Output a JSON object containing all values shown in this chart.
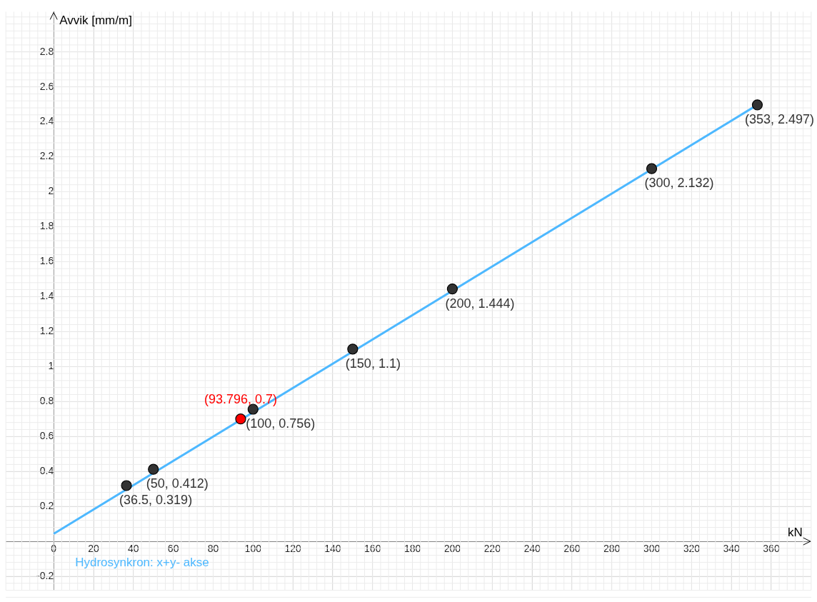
{
  "chart_data": {
    "type": "scatter",
    "xlabel": "kN",
    "ylabel": "Avvik [mm/m]",
    "xlim": [
      -24,
      380
    ],
    "ylim": [
      -0.28,
      3.03
    ],
    "xticks": [
      0,
      20,
      40,
      60,
      80,
      100,
      120,
      140,
      160,
      180,
      200,
      220,
      240,
      260,
      280,
      300,
      320,
      340,
      360
    ],
    "yticks": [
      -0.2,
      {
        "value": 0,
        "label": null
      },
      0.2,
      0.4,
      0.6,
      0.8,
      1,
      1.2,
      1.4,
      1.6,
      1.8,
      2,
      2.2,
      2.4,
      2.6,
      2.8
    ],
    "grid": true,
    "legend": false,
    "marker": "circle",
    "series": [
      {
        "type": "line",
        "name": "Hydrosynkron: x+y- akse",
        "color": "#4db8ff",
        "marker": "none",
        "x": [
          0,
          353
        ],
        "values": [
          0.043,
          2.497
        ]
      },
      {
        "type": "scatter",
        "color": "#333333",
        "x": [
          36.5,
          50,
          100,
          150,
          200,
          300,
          353
        ],
        "values": [
          0.319,
          0.412,
          0.756,
          1.1,
          1.444,
          2.132,
          2.497
        ],
        "value_labels": [
          "(36.5, 0.319)",
          "(50, 0.412)",
          "(100, 0.756)",
          "(150, 1.1)",
          "(200, 1.444)",
          "(300, 2.132)",
          "(353, 2.497)"
        ]
      },
      {
        "type": "scatter",
        "color": "#ff0000",
        "x": [
          93.796
        ],
        "values": [
          0.7
        ],
        "value_labels": [
          "(93.796, 0.7)"
        ]
      }
    ]
  }
}
